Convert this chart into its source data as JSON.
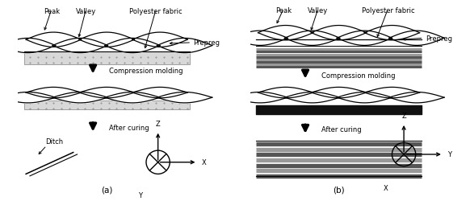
{
  "bg_color": "#ffffff",
  "line_color": "#000000",
  "gray_color": "#888888",
  "dotted_bg": "#d8d8d8",
  "dark_bar": "#111111",
  "title_a": "(a)",
  "title_b": "(b)",
  "label_peak": "Peak",
  "label_valley": "Valley",
  "label_polyester": "Polyester fabric",
  "label_prepreg": "Prepreg",
  "label_compression": "Compression molding",
  "label_after_curing": "After curing",
  "label_ditch": "Ditch",
  "stripe_colors": [
    "#555555",
    "#999999",
    "#555555",
    "#999999",
    "#555555",
    "#999999",
    "#555555",
    "#999999"
  ]
}
